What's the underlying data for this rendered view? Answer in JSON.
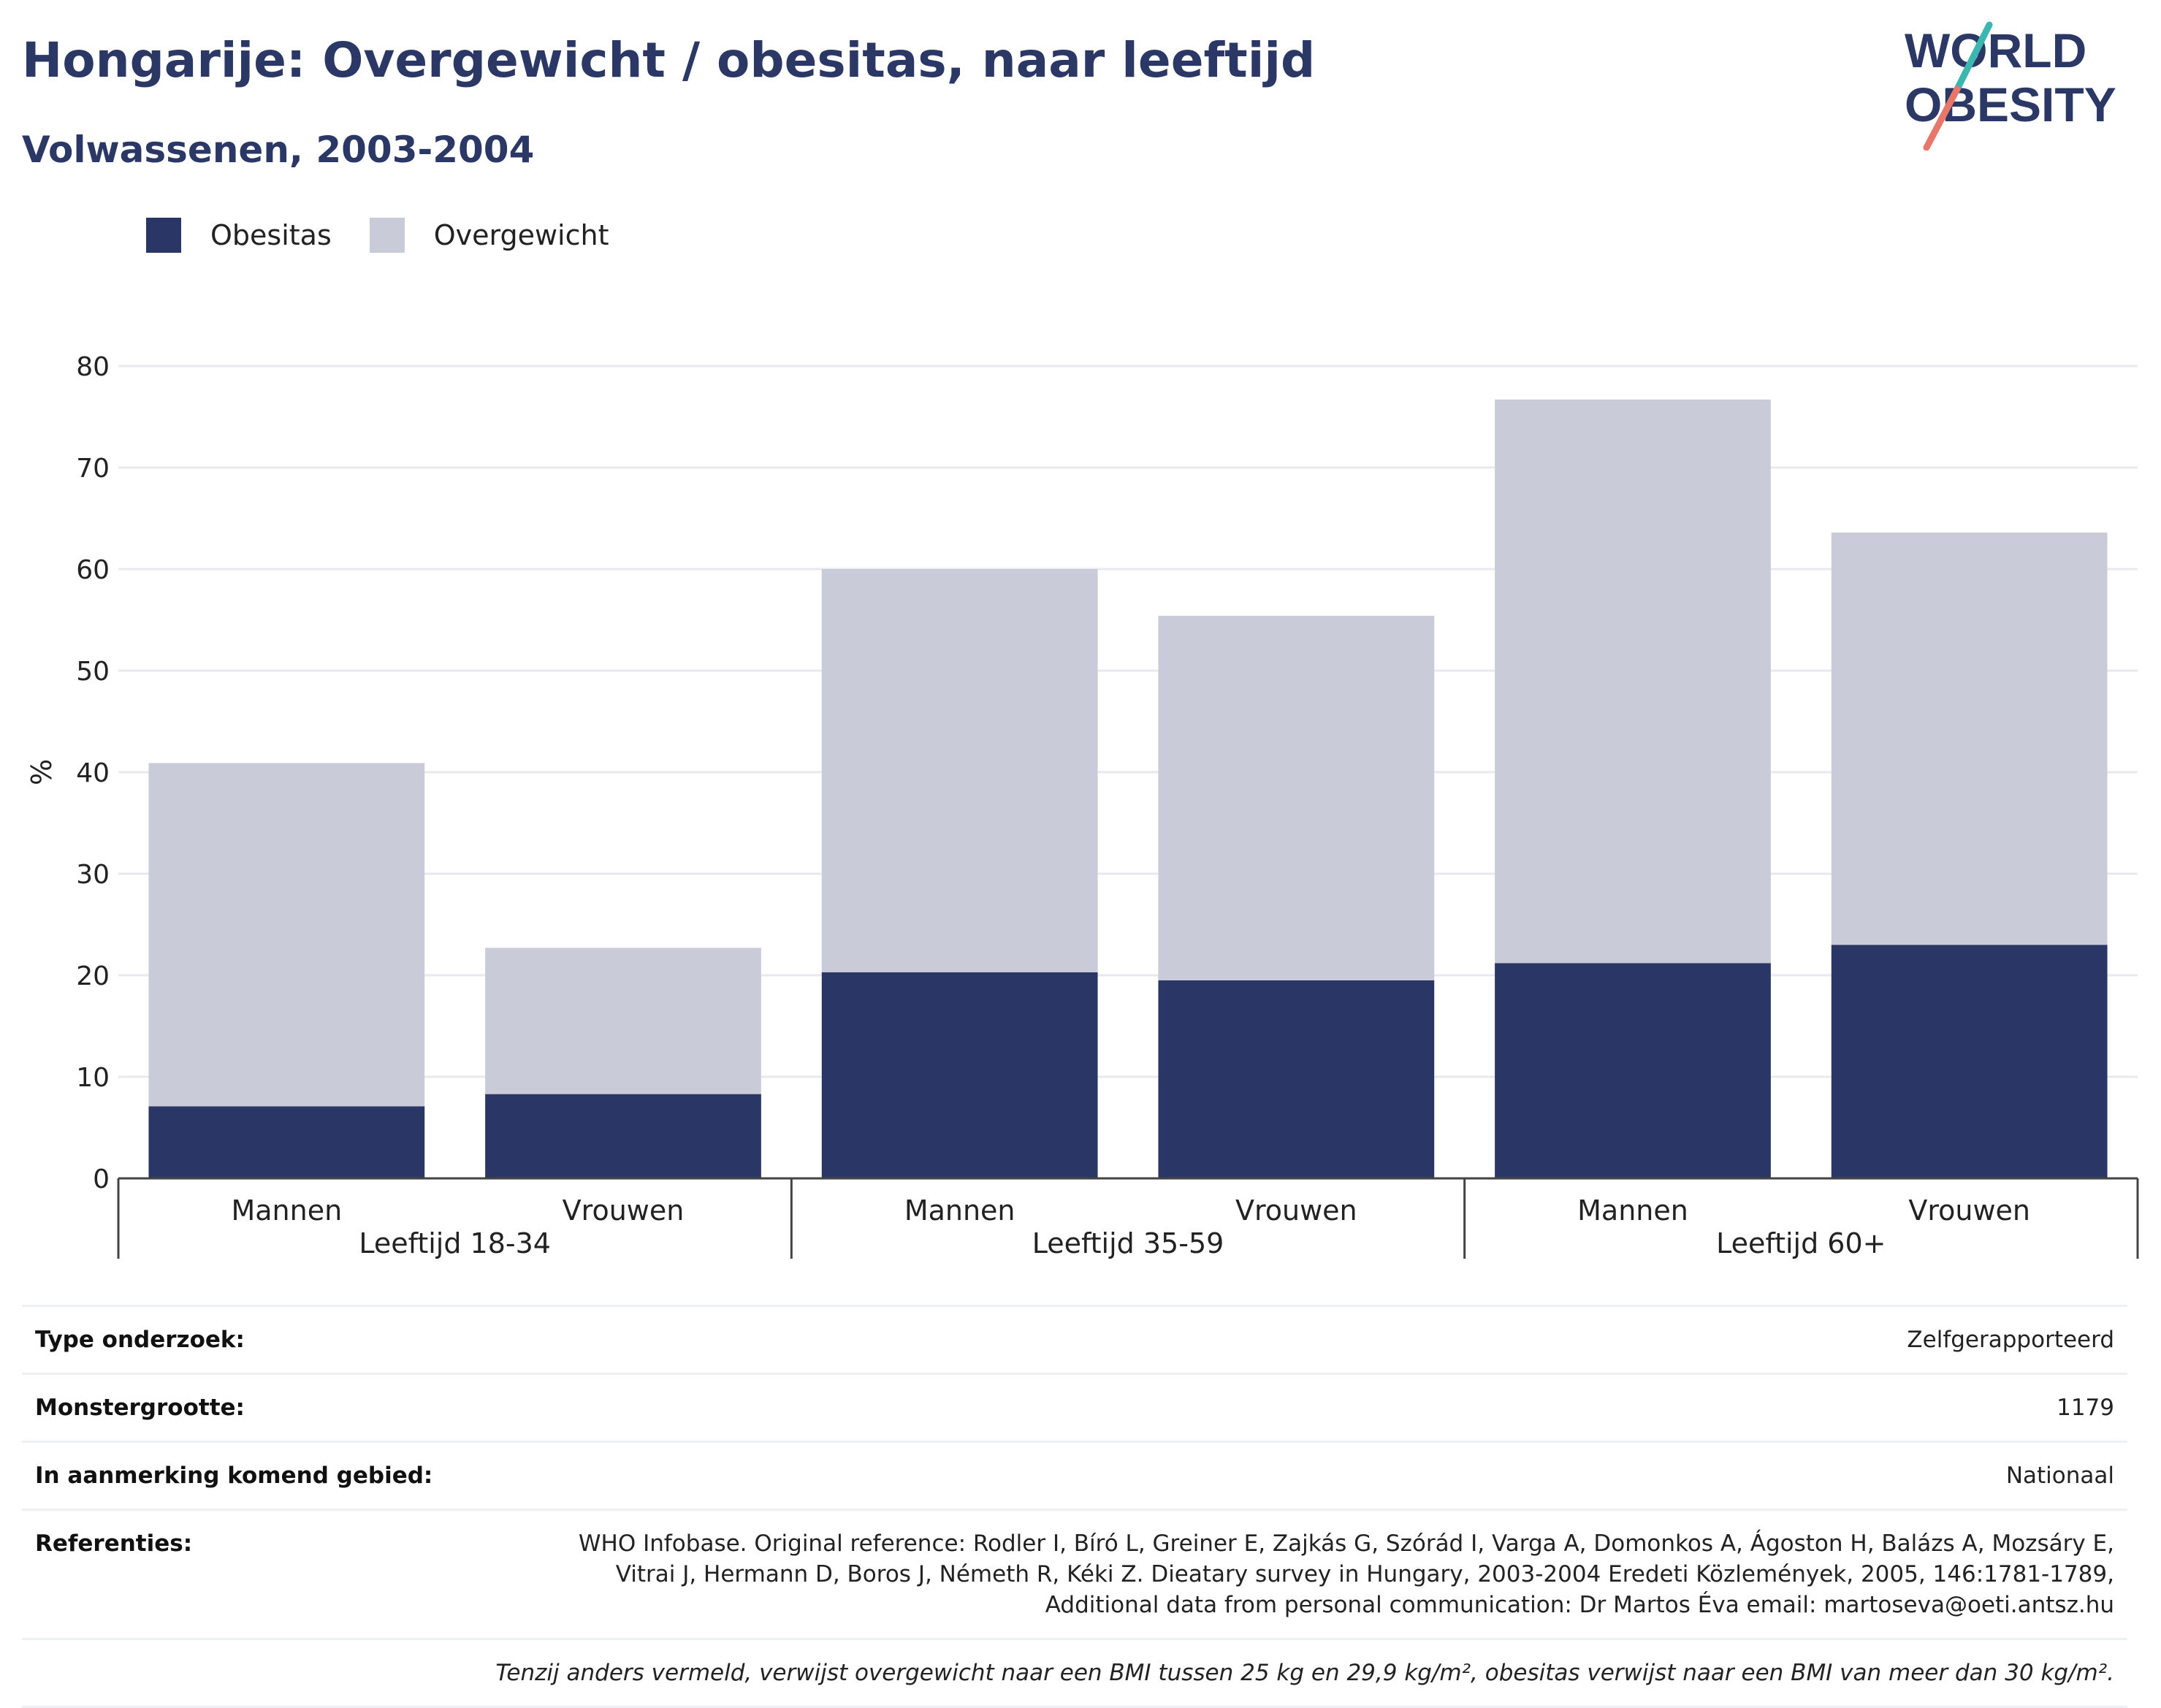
{
  "header": {
    "title": "Hongarije: Overgewicht / obesitas, naar leeftijd",
    "subtitle": "Volwassenen, 2003-2004"
  },
  "logo": {
    "line1": "WORLD",
    "line2": "OBESITY"
  },
  "legend": [
    {
      "label": "Obesitas",
      "color": "#2a3665"
    },
    {
      "label": "Overgewicht",
      "color": "#cacbd8"
    }
  ],
  "chart_data": {
    "type": "bar",
    "stacked": true,
    "ylabel": "%",
    "ylim": [
      0,
      80
    ],
    "yticks": [
      0,
      10,
      20,
      30,
      40,
      50,
      60,
      70,
      80
    ],
    "grid": true,
    "legend_position": "top-left",
    "groups": [
      "Leeftijd 18-34",
      "Leeftijd 35-59",
      "Leeftijd 60+"
    ],
    "categories": [
      "Mannen",
      "Vrouwen",
      "Mannen",
      "Vrouwen",
      "Mannen",
      "Vrouwen"
    ],
    "series": [
      {
        "name": "Obesitas",
        "color": "#2a3665",
        "values": [
          7.1,
          8.3,
          20.3,
          19.5,
          21.2,
          23.0
        ]
      },
      {
        "name": "Overgewicht",
        "color": "#cacbd8",
        "values": [
          33.8,
          14.4,
          39.7,
          35.9,
          55.5,
          40.6
        ]
      }
    ]
  },
  "info": {
    "survey_type": {
      "label": "Type onderzoek:",
      "value": "Zelfgerapporteerd"
    },
    "sample_size": {
      "label": "Monstergrootte:",
      "value": "1179"
    },
    "area": {
      "label": "In aanmerking komend gebied:",
      "value": "Nationaal"
    },
    "references": {
      "label": "Referenties:",
      "line1": "WHO Infobase. Original reference: Rodler I, Bíró L, Greiner E, Zajkás G, Szórád I, Varga A, Domonkos A, Ágoston H, Balázs A, Mozsáry E,",
      "line2": "Vitrai J, Hermann D, Boros J, Németh R, Kéki Z. Dieatary survey in Hungary, 2003-2004 Eredeti Közlemények, 2005, 146:1781-1789,",
      "line3": "Additional data from personal communication: Dr Martos Éva email: martoseva@oeti.antsz.hu"
    },
    "note": "Tenzij anders vermeld, verwijst overgewicht naar een BMI tussen 25 kg en 29,9 kg/m², obesitas verwijst naar een BMI van meer dan 30 kg/m²."
  }
}
